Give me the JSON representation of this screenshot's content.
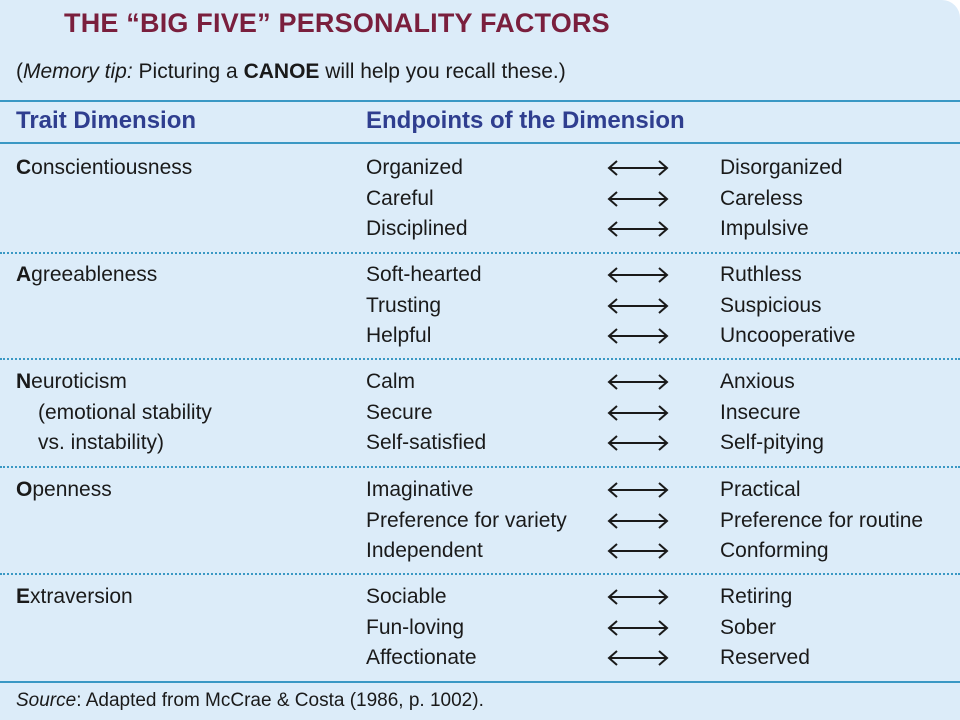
{
  "title": "THE “BIG FIVE” PERSONALITY FACTORS",
  "memory_tip": {
    "open": "(",
    "label": "Memory tip:",
    "text_before": " Picturing a ",
    "keyword": "CANOE",
    "text_after": " will help you recall these.)"
  },
  "headers": {
    "trait": "Trait Dimension",
    "endpoints": "Endpoints of the Dimension"
  },
  "arrow_icon": "double-headed-arrow",
  "colors": {
    "title": "#7a1f3d",
    "header": "#2f3e8f",
    "rule": "#3a98c4",
    "background": "#dcecf9"
  },
  "factors": [
    {
      "initial": "C",
      "rest": "onscientiousness",
      "sub": [
        "",
        ""
      ],
      "rows": [
        {
          "left": "Organized",
          "right": "Disorganized"
        },
        {
          "left": "Careful",
          "right": "Careless"
        },
        {
          "left": "Disciplined",
          "right": "Impulsive"
        }
      ]
    },
    {
      "initial": "A",
      "rest": "greeableness",
      "sub": [
        "",
        ""
      ],
      "rows": [
        {
          "left": "Soft-hearted",
          "right": "Ruthless"
        },
        {
          "left": "Trusting",
          "right": "Suspicious"
        },
        {
          "left": "Helpful",
          "right": "Uncooperative"
        }
      ]
    },
    {
      "initial": "N",
      "rest": "euroticism",
      "sub": [
        "(emotional stability",
        "vs. instability)"
      ],
      "rows": [
        {
          "left": "Calm",
          "right": "Anxious"
        },
        {
          "left": "Secure",
          "right": "Insecure"
        },
        {
          "left": "Self-satisfied",
          "right": "Self-pitying"
        }
      ]
    },
    {
      "initial": "O",
      "rest": "penness",
      "sub": [
        "",
        ""
      ],
      "rows": [
        {
          "left": "Imaginative",
          "right": "Practical"
        },
        {
          "left": "Preference for variety",
          "right": "Preference for routine"
        },
        {
          "left": "Independent",
          "right": "Conforming"
        }
      ]
    },
    {
      "initial": "E",
      "rest": "xtraversion",
      "sub": [
        "",
        ""
      ],
      "rows": [
        {
          "left": "Sociable",
          "right": "Retiring"
        },
        {
          "left": "Fun-loving",
          "right": "Sober"
        },
        {
          "left": "Affectionate",
          "right": "Reserved"
        }
      ]
    }
  ],
  "source": {
    "label": "Source",
    "text": ": Adapted from McCrae & Costa (1986, p. 1002)."
  }
}
